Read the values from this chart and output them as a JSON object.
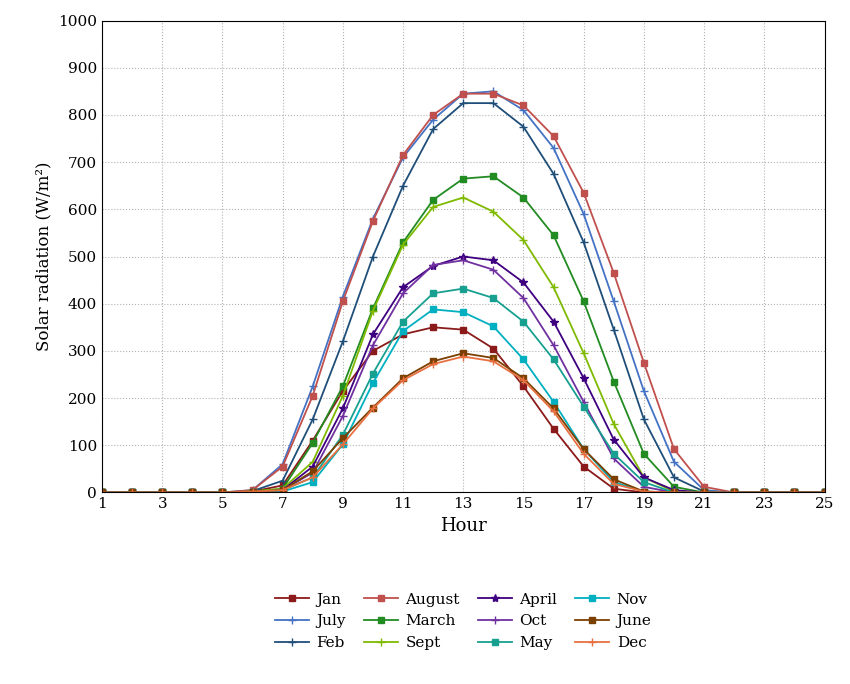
{
  "hours": [
    1,
    2,
    3,
    4,
    5,
    6,
    7,
    8,
    9,
    10,
    11,
    12,
    13,
    14,
    15,
    16,
    17,
    18,
    19,
    20,
    21,
    22,
    23,
    24,
    25
  ],
  "xlabel": "Hour",
  "ylabel": "Solar radiation (W/m²)",
  "ylim": [
    0,
    1000
  ],
  "xlim": [
    1,
    25
  ],
  "xticks": [
    1,
    3,
    5,
    7,
    9,
    11,
    13,
    15,
    17,
    19,
    21,
    23,
    25
  ],
  "yticks": [
    0,
    100,
    200,
    300,
    400,
    500,
    600,
    700,
    800,
    900,
    1000
  ],
  "series": {
    "Jan": {
      "color": "#8B1A1A",
      "marker": "s",
      "markersize": 4,
      "data": [
        0,
        0,
        0,
        0,
        0,
        2,
        15,
        110,
        215,
        300,
        335,
        350,
        345,
        305,
        225,
        135,
        55,
        8,
        0,
        0,
        0,
        0,
        0,
        0,
        0
      ]
    },
    "July": {
      "color": "#4472C4",
      "marker": "+",
      "markersize": 6,
      "data": [
        0,
        0,
        0,
        0,
        0,
        5,
        60,
        225,
        415,
        580,
        710,
        790,
        845,
        850,
        810,
        730,
        590,
        405,
        215,
        65,
        5,
        0,
        0,
        0,
        0
      ]
    },
    "Feb": {
      "color": "#1F4E79",
      "marker": "+",
      "markersize": 6,
      "data": [
        0,
        0,
        0,
        0,
        0,
        3,
        25,
        155,
        320,
        500,
        650,
        770,
        825,
        825,
        775,
        675,
        530,
        345,
        155,
        32,
        2,
        0,
        0,
        0,
        0
      ]
    },
    "August": {
      "color": "#C0504D",
      "marker": "s",
      "markersize": 4,
      "data": [
        0,
        0,
        0,
        0,
        0,
        5,
        55,
        205,
        405,
        575,
        715,
        800,
        845,
        845,
        820,
        755,
        635,
        465,
        275,
        92,
        12,
        0,
        0,
        0,
        0
      ]
    },
    "March": {
      "color": "#228B22",
      "marker": "s",
      "markersize": 4,
      "data": [
        0,
        0,
        0,
        0,
        0,
        2,
        8,
        105,
        225,
        390,
        530,
        620,
        665,
        670,
        625,
        545,
        405,
        235,
        82,
        12,
        0,
        0,
        0,
        0,
        0
      ]
    },
    "Sept": {
      "color": "#7FBA00",
      "marker": "+",
      "markersize": 6,
      "data": [
        0,
        0,
        0,
        0,
        0,
        2,
        8,
        65,
        205,
        385,
        525,
        605,
        625,
        595,
        535,
        435,
        295,
        145,
        32,
        2,
        0,
        0,
        0,
        0,
        0
      ]
    },
    "April": {
      "color": "#3F0080",
      "marker": "*",
      "markersize": 6,
      "data": [
        0,
        0,
        0,
        0,
        0,
        0,
        5,
        55,
        178,
        335,
        435,
        480,
        500,
        492,
        445,
        362,
        242,
        112,
        32,
        5,
        0,
        0,
        0,
        0,
        0
      ]
    },
    "Oct": {
      "color": "#7030A0",
      "marker": "+",
      "markersize": 6,
      "data": [
        0,
        0,
        0,
        0,
        0,
        0,
        5,
        42,
        162,
        312,
        422,
        482,
        492,
        472,
        412,
        312,
        192,
        72,
        12,
        0,
        0,
        0,
        0,
        0,
        0
      ]
    },
    "May": {
      "color": "#17A090",
      "marker": "s",
      "markersize": 4,
      "data": [
        0,
        0,
        0,
        0,
        0,
        0,
        5,
        32,
        122,
        252,
        362,
        422,
        432,
        412,
        362,
        282,
        182,
        82,
        22,
        0,
        0,
        0,
        0,
        0,
        0
      ]
    },
    "Nov": {
      "color": "#00B0C0",
      "marker": "s",
      "markersize": 4,
      "data": [
        0,
        0,
        0,
        0,
        0,
        0,
        2,
        22,
        102,
        232,
        342,
        388,
        382,
        352,
        282,
        192,
        92,
        22,
        2,
        0,
        0,
        0,
        0,
        0,
        0
      ]
    },
    "June": {
      "color": "#7B3F00",
      "marker": "s",
      "markersize": 4,
      "data": [
        0,
        0,
        0,
        0,
        0,
        2,
        5,
        45,
        115,
        180,
        242,
        278,
        295,
        285,
        242,
        178,
        92,
        28,
        2,
        0,
        0,
        0,
        0,
        0,
        0
      ]
    },
    "Dec": {
      "color": "#E87040",
      "marker": "+",
      "markersize": 6,
      "data": [
        0,
        0,
        0,
        0,
        0,
        2,
        5,
        32,
        102,
        178,
        238,
        272,
        288,
        278,
        238,
        172,
        82,
        18,
        2,
        0,
        0,
        0,
        0,
        0,
        0
      ]
    }
  },
  "legend_order": [
    "Jan",
    "July",
    "Feb",
    "August",
    "March",
    "Sept",
    "April",
    "Oct",
    "May",
    "Nov",
    "June",
    "Dec"
  ],
  "legend_ncol": 4,
  "background_color": "#ffffff",
  "grid_color": "#808080",
  "grid_style": ":",
  "grid_alpha": 0.6
}
